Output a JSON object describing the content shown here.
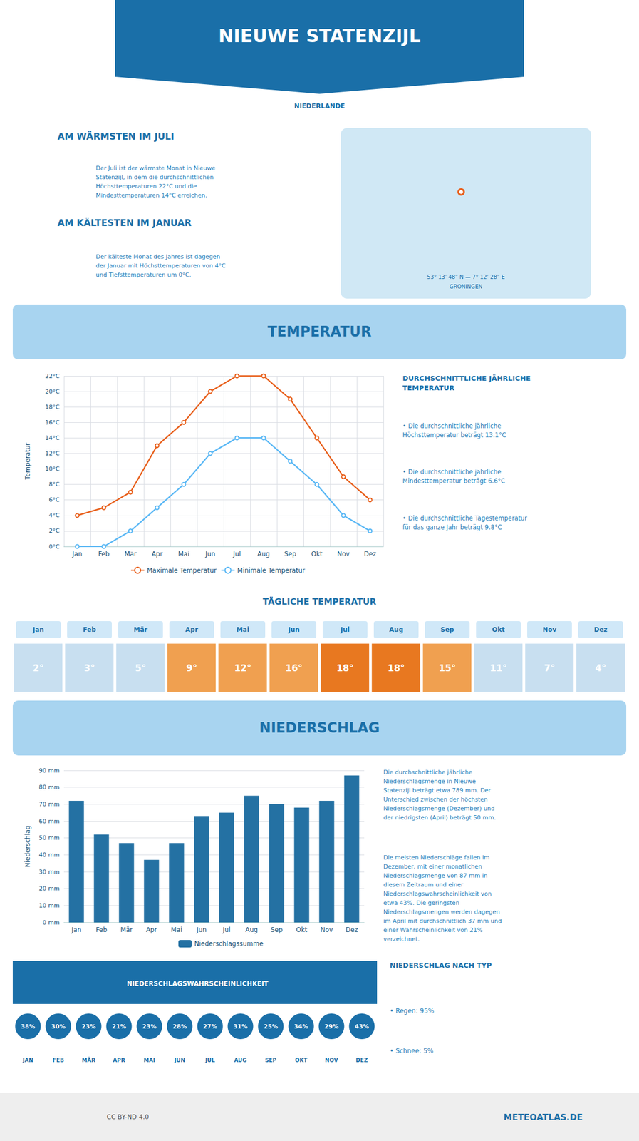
{
  "title": "NIEUWE STATENZIJL",
  "subtitle": "NIEDERLANDE",
  "annotations": [
    "AM WÄRMSTEN IM JULI",
    "Der Juli ist der wärmste Monat in Nieuwe\nStatenzijl, in dem die durchschnittlichen\nHöchsttemperaturen 22°C und die\nMindesttemperaturen 14°C erreichen.",
    "AM KÄLTESTEN IM JANUAR",
    "Der kälteste Monat des Jahres ist dagegen\nder Januar mit Höchsttemperaturen von 4°C\nund Tiefsttemperaturen um 0°C.",
    "53° 13’ 48” N — 7° 12’ 28” E",
    "GRONINGEN",
    "TEMPERATUR",
    "DURCHSCHNITTLICHE JÄHRLICHE\nTEMPERATUR",
    "• Die durchschnittliche jährliche\nHöchsttemperatur beträgt 13.1°C",
    "• Die durchschnittliche jährliche\nMindesttemperatur beträgt 6.6°C",
    "• Die durchschnittliche Tagestemperatur\nfür das ganze Jahr beträgt 9.8°C",
    "NIEDERSCHLAG",
    "Die durchschnittliche jährliche\nNiederschlagsmenge in Nieuwe\nStatenzijl beträgt etwa 789 mm. Der\nUnterschied zwischen der höchsten\nNiederschlagsmenge (Dezember) und\nder niedrigsten (April) beträgt 50 mm.",
    "Die meisten Niederschläge fallen im\nDezember, mit einer monatlichen\nNiederschlagsmenge von 87 mm in\ndiesem Zeitraum und einer\nNiederschlagswahrscheinlichkeit von\netwa 43%. Die geringsten\nNiederschlagsmengen werden dagegen\nim April mit durchschnittlich 37 mm und\neiner Wahrscheinlichkeit von 21%\nverzeichnet.",
    "NIEDERSCHLAG NACH TYP",
    "• Regen: 95%",
    "• Schnee: 5%",
    "CC BY-ND 4.0",
    "METEOATLAS.DE"
  ],
  "chart_data": [
    {
      "type": "line",
      "categories": [
        "Jan",
        "Feb",
        "Mär",
        "Apr",
        "Mai",
        "Jun",
        "Jul",
        "Aug",
        "Sep",
        "Okt",
        "Nov",
        "Dez"
      ],
      "series": [
        {
          "name": "Maximale Temperatur",
          "color": "#e8601c",
          "marker": "circle",
          "values": [
            4,
            5,
            7,
            13,
            16,
            20,
            22,
            22,
            19,
            14,
            9,
            6
          ]
        },
        {
          "name": "Minimale Temperatur",
          "color": "#5bb8f5",
          "marker": "circle",
          "values": [
            0,
            0,
            2,
            5,
            8,
            12,
            14,
            14,
            11,
            8,
            4,
            2
          ]
        }
      ],
      "ylabel": "Temperatur",
      "ylim": [
        0,
        22
      ],
      "yticks": [
        {
          "value": 0,
          "label": "0°C"
        },
        {
          "value": 2,
          "label": "2°C"
        },
        {
          "value": 4,
          "label": "4°C"
        },
        {
          "value": 6,
          "label": "6°C"
        },
        {
          "value": 8,
          "label": "8°C"
        },
        {
          "value": 10,
          "label": "10°C"
        },
        {
          "value": 12,
          "label": "12°C"
        },
        {
          "value": 14,
          "label": "14°C"
        },
        {
          "value": 16,
          "label": "16°C"
        },
        {
          "value": 18,
          "label": "18°C"
        },
        {
          "value": 20,
          "label": "20°C"
        },
        {
          "value": 22,
          "label": "22°C"
        }
      ],
      "grid": true,
      "legend": "bottom"
    },
    {
      "type": "bar",
      "categories": [
        "Jan",
        "Feb",
        "Mär",
        "Apr",
        "Mai",
        "Jun",
        "Jul",
        "Aug",
        "Sep",
        "Okt",
        "Nov",
        "Dez"
      ],
      "series": [
        {
          "name": "Niederschlagssumme",
          "color": "#2471a3",
          "values": [
            72,
            52,
            47,
            37,
            47,
            63,
            65,
            75,
            70,
            68,
            72,
            87
          ]
        }
      ],
      "ylabel": "Niederschlag",
      "ylim": [
        0,
        90
      ],
      "yticks": [
        {
          "value": 0,
          "label": "0 mm"
        },
        {
          "value": 10,
          "label": "10 mm"
        },
        {
          "value": 20,
          "label": "20 mm"
        },
        {
          "value": 30,
          "label": "30 mm"
        },
        {
          "value": 40,
          "label": "40 mm"
        },
        {
          "value": 50,
          "label": "50 mm"
        },
        {
          "value": 60,
          "label": "60 mm"
        },
        {
          "value": 70,
          "label": "70 mm"
        },
        {
          "value": 80,
          "label": "80 mm"
        },
        {
          "value": 90,
          "label": "90 mm"
        }
      ],
      "grid": "y",
      "legend": "bottom"
    },
    {
      "type": "table",
      "title": "TÄGLICHE TEMPERATUR",
      "categories": [
        "Jan",
        "Feb",
        "Mär",
        "Apr",
        "Mai",
        "Jun",
        "Jul",
        "Aug",
        "Sep",
        "Okt",
        "Nov",
        "Dez"
      ],
      "values": [
        2,
        3,
        5,
        9,
        12,
        16,
        18,
        18,
        15,
        11,
        7,
        4
      ],
      "value_labels": [
        "2°",
        "3°",
        "5°",
        "9°",
        "12°",
        "16°",
        "18°",
        "18°",
        "15°",
        "11°",
        "7°",
        "4°"
      ],
      "colors": [
        "#c8dff0",
        "#c8dff0",
        "#c8dff0",
        "#f0a050",
        "#f0a050",
        "#f0a050",
        "#e87820",
        "#e87820",
        "#f0a050",
        "#c8dff0",
        "#c8dff0",
        "#c8dff0"
      ],
      "marker": "square",
      "data_labels": true
    },
    {
      "type": "table",
      "title": "NIEDERSCHLAGSWAHRSCHEINLICHKEIT",
      "categories": [
        "JAN",
        "FEB",
        "MÄR",
        "APR",
        "MAI",
        "JUN",
        "JUL",
        "AUG",
        "SEP",
        "OKT",
        "NOV",
        "DEZ"
      ],
      "values": [
        38,
        30,
        23,
        21,
        23,
        28,
        27,
        31,
        25,
        34,
        29,
        43
      ],
      "value_labels": [
        "38%",
        "30%",
        "23%",
        "21%",
        "23%",
        "28%",
        "27%",
        "31%",
        "25%",
        "34%",
        "29%",
        "43%"
      ],
      "color": "#1a6fa8",
      "marker": "circle",
      "data_labels": true
    }
  ]
}
